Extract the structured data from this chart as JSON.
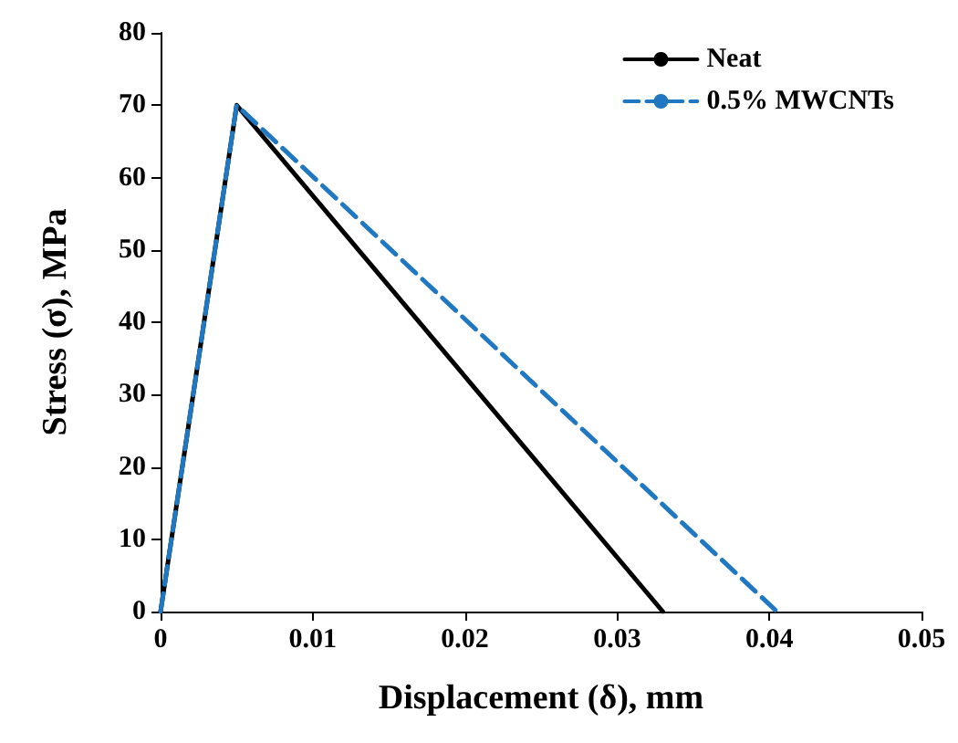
{
  "chart_data": {
    "type": "line",
    "xlabel": "Displacement (δ), mm",
    "ylabel": "Stress (σ), MPa",
    "xlim": [
      0,
      0.05
    ],
    "xticks": [
      0,
      0.01,
      0.02,
      0.03,
      0.04,
      0.05
    ],
    "ylim": [
      0,
      80
    ],
    "yticks": [
      0,
      10,
      20,
      30,
      40,
      50,
      60,
      70,
      80
    ],
    "grid": false,
    "legend": "top right",
    "marker": "none",
    "series": [
      {
        "name": "Neat",
        "color": "#000000",
        "line_style": "solid",
        "x": [
          0,
          0.005,
          0.033
        ],
        "values": [
          0,
          70,
          0
        ]
      },
      {
        "name": "0.5% MWCNTs",
        "color": "#1f78c1",
        "line_style": "dashed",
        "x": [
          0,
          0.005,
          0.0405
        ],
        "values": [
          0,
          70,
          0
        ]
      }
    ]
  }
}
